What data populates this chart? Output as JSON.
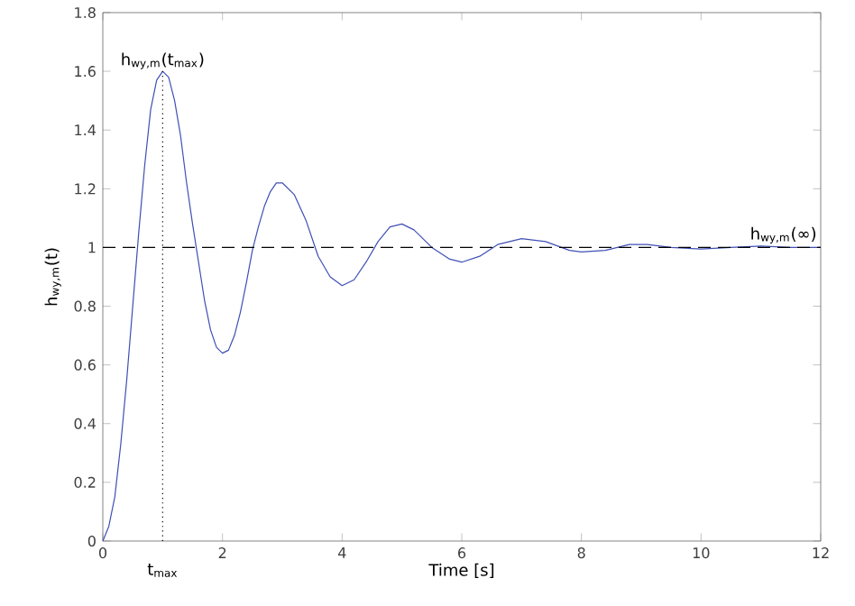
{
  "chart_data": {
    "type": "line",
    "xlabel": "Time [s]",
    "ylabel": "h$_{wy,m}$(t)",
    "xlim": [
      0,
      12
    ],
    "ylim": [
      0,
      1.8
    ],
    "xticks": [
      0,
      2,
      4,
      6,
      8,
      10,
      12
    ],
    "yticks": [
      0,
      0.2,
      0.4,
      0.6,
      0.8,
      1,
      1.2,
      1.4,
      1.6,
      1.8
    ],
    "marker": "none",
    "line_style": "solid",
    "series": [
      {
        "color": "#3f4fb5",
        "x": [
          0,
          0.1,
          0.2,
          0.3,
          0.4,
          0.5,
          0.6,
          0.7,
          0.8,
          0.9,
          1.0,
          1.1,
          1.2,
          1.3,
          1.4,
          1.5,
          1.6,
          1.7,
          1.8,
          1.9,
          2.0,
          2.1,
          2.2,
          2.3,
          2.4,
          2.5,
          2.6,
          2.7,
          2.8,
          2.9,
          3.0,
          3.2,
          3.4,
          3.6,
          3.8,
          4.0,
          4.2,
          4.4,
          4.6,
          4.8,
          5.0,
          5.2,
          5.5,
          5.8,
          6.0,
          6.3,
          6.6,
          7.0,
          7.4,
          7.8,
          8.0,
          8.4,
          8.8,
          9.1,
          9.5,
          10,
          10.5,
          11,
          11.5,
          12
        ],
        "values": [
          0,
          0.05,
          0.15,
          0.33,
          0.55,
          0.8,
          1.05,
          1.28,
          1.47,
          1.57,
          1.6,
          1.58,
          1.5,
          1.38,
          1.22,
          1.08,
          0.95,
          0.82,
          0.72,
          0.66,
          0.64,
          0.65,
          0.7,
          0.78,
          0.88,
          0.99,
          1.07,
          1.14,
          1.19,
          1.22,
          1.22,
          1.18,
          1.09,
          0.97,
          0.9,
          0.87,
          0.89,
          0.95,
          1.02,
          1.07,
          1.08,
          1.06,
          1.0,
          0.96,
          0.95,
          0.97,
          1.01,
          1.03,
          1.02,
          0.99,
          0.985,
          0.99,
          1.01,
          1.01,
          1.0,
          0.995,
          1.0,
          1.005,
          1.0,
          1.0
        ]
      }
    ],
    "ref_lines": [
      {
        "axis": "x",
        "value": 1,
        "label": "t$_{max}$",
        "line_style": "dotted",
        "color": "#000000"
      },
      {
        "axis": "y",
        "value": 1,
        "label": "h$_{wy,m}$(∞)",
        "line_style": "dashed",
        "color": "#000000"
      }
    ],
    "annotations": [
      {
        "text": "h$_{wy,m}$(t$_{max}$)",
        "x": 1,
        "y": 1.6
      }
    ]
  }
}
